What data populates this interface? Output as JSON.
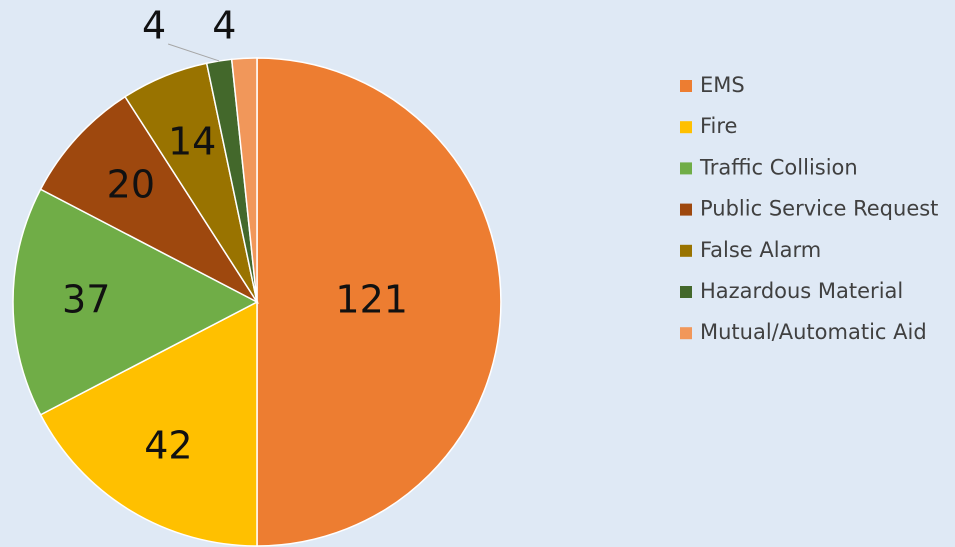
{
  "chart_data": {
    "type": "pie",
    "categories": [
      "EMS",
      "Fire",
      "Traffic Collision",
      "Public Service Request",
      "False Alarm",
      "Hazardous Material",
      "Mutual/Automatic Aid"
    ],
    "values": [
      121,
      42,
      37,
      20,
      14,
      4,
      4
    ],
    "colors": [
      "#ED7D31",
      "#FFC000",
      "#70AD47",
      "#9E480E",
      "#997300",
      "#43682B",
      "#F1975A"
    ],
    "legend": "right"
  }
}
